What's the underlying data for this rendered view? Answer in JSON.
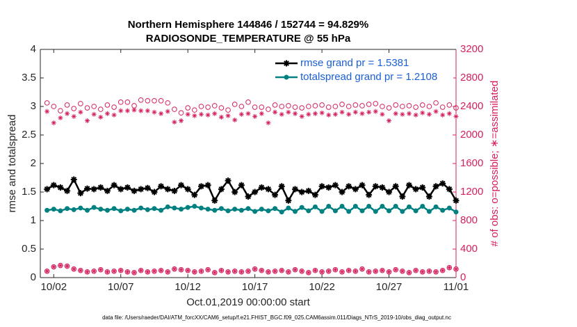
{
  "chart_data": {
    "type": "line",
    "title": [
      "Northern Hemisphere 144846 / 152744 = 94.829%",
      "RADIOSONDE_TEMPERATURE @ 55 hPa"
    ],
    "xlabel": "Oct.01,2019 00:00:00 start",
    "ylabel": "rmse and totalspread",
    "y2label": "# of obs: o=possible; ∗=assimilated",
    "footnote": "data file: /Users/raeder/DAI/ATM_forcXX/CAM6_setup/f.e21.FHIST_BGC.f09_025.CAM6assim.011/Diags_NTrS_2019-10/obs_diag_output.nc",
    "xlim": [
      1,
      32
    ],
    "xticks": [
      {
        "value": 2,
        "label": "10/02"
      },
      {
        "value": 7,
        "label": "10/07"
      },
      {
        "value": 12,
        "label": "10/12"
      },
      {
        "value": 17,
        "label": "10/17"
      },
      {
        "value": 22,
        "label": "10/22"
      },
      {
        "value": 27,
        "label": "10/27"
      },
      {
        "value": 32,
        "label": "11/01"
      }
    ],
    "ylim": [
      0,
      4
    ],
    "yticks": [
      0,
      0.5,
      1,
      1.5,
      2,
      2.5,
      3,
      3.5,
      4
    ],
    "y2lim": [
      0,
      3200
    ],
    "y2ticks": [
      0,
      400,
      800,
      1200,
      1600,
      2000,
      2400,
      2800,
      3200
    ],
    "y2color": "#d6205c",
    "legend": "upper right",
    "x": [
      1.5,
      2,
      2.5,
      3,
      3.5,
      4,
      4.5,
      5,
      5.5,
      6,
      6.5,
      7,
      7.5,
      8,
      8.5,
      9,
      9.5,
      10,
      10.5,
      11,
      11.5,
      12,
      12.5,
      13,
      13.5,
      14,
      14.5,
      15,
      15.5,
      16,
      16.5,
      17,
      17.5,
      18,
      18.5,
      19,
      19.5,
      20,
      20.5,
      21,
      21.5,
      22,
      22.5,
      23,
      23.5,
      24,
      24.5,
      25,
      25.5,
      26,
      26.5,
      27,
      27.5,
      28,
      28.5,
      29,
      29.5,
      30,
      30.5,
      31,
      31.5,
      32
    ],
    "series": [
      {
        "name": "rmse grand pr = 1.5381",
        "color": "#000000",
        "axis": "y",
        "marker": "*",
        "line": true,
        "values": [
          1.55,
          1.62,
          1.58,
          1.52,
          1.72,
          1.48,
          1.56,
          1.55,
          1.58,
          1.52,
          1.62,
          1.55,
          1.58,
          1.52,
          1.55,
          1.57,
          1.5,
          1.6,
          1.55,
          1.52,
          1.62,
          1.55,
          1.45,
          1.6,
          1.62,
          1.35,
          1.55,
          1.7,
          1.5,
          1.62,
          1.42,
          1.5,
          1.58,
          1.55,
          1.45,
          1.6,
          1.35,
          1.55,
          1.5,
          1.52,
          1.45,
          1.6,
          1.58,
          1.62,
          1.5,
          1.6,
          1.55,
          1.62,
          1.45,
          1.6,
          1.58,
          1.5,
          1.6,
          1.42,
          1.62,
          1.55,
          1.58,
          1.42,
          1.6,
          1.65,
          1.55,
          1.35
        ]
      },
      {
        "name": "totalspread grand pr = 1.2108",
        "color": "#008080",
        "axis": "y",
        "marker": "o",
        "filled": true,
        "line": true,
        "values": [
          1.18,
          1.2,
          1.17,
          1.21,
          1.19,
          1.22,
          1.18,
          1.23,
          1.2,
          1.18,
          1.21,
          1.17,
          1.2,
          1.18,
          1.22,
          1.19,
          1.21,
          1.18,
          1.24,
          1.22,
          1.2,
          1.23,
          1.25,
          1.22,
          1.2,
          1.18,
          1.21,
          1.17,
          1.2,
          1.18,
          1.21,
          1.16,
          1.2,
          1.17,
          1.21,
          1.15,
          1.22,
          1.16,
          1.23,
          1.17,
          1.24,
          1.16,
          1.25,
          1.17,
          1.25,
          1.16,
          1.25,
          1.17,
          1.25,
          1.16,
          1.25,
          1.17,
          1.25,
          1.16,
          1.24,
          1.17,
          1.25,
          1.16,
          1.24,
          1.18,
          1.22,
          1.15
        ]
      },
      {
        "color": "#d6205c",
        "axis": "y2",
        "marker": "o",
        "line": false,
        "values": [
          2450,
          2400,
          2340,
          2420,
          2370,
          2440,
          2380,
          2400,
          2360,
          2420,
          2390,
          2460,
          2460,
          2410,
          2490,
          2480,
          2480,
          2480,
          2450,
          2360,
          2310,
          2380,
          2350,
          2400,
          2390,
          2410,
          2380,
          2350,
          2430,
          2400,
          2460,
          2390,
          2390,
          2360,
          2420,
          2400,
          2410,
          2390,
          2380,
          2400,
          2410,
          2420,
          2390,
          2400,
          2430,
          2400,
          2420,
          2410,
          2430,
          2440,
          2400,
          2380,
          2420,
          2400,
          2410,
          2390,
          2420,
          2400,
          2450,
          2390,
          2420,
          2380
        ]
      },
      {
        "color": "#d6205c",
        "axis": "y2",
        "marker": "*",
        "line": false,
        "values": [
          2330,
          2170,
          2240,
          2300,
          2260,
          2320,
          2200,
          2290,
          2250,
          2300,
          2280,
          2340,
          2340,
          2350,
          2340,
          2340,
          2320,
          2300,
          2330,
          2180,
          2200,
          2290,
          2270,
          2290,
          2280,
          2300,
          2250,
          2270,
          2210,
          2290,
          2300,
          2260,
          2300,
          2170,
          2320,
          2290,
          2320,
          2300,
          2260,
          2290,
          2300,
          2310,
          2280,
          2290,
          2320,
          2290,
          2320,
          2300,
          2320,
          2330,
          2290,
          2200,
          2300,
          2290,
          2300,
          2280,
          2310,
          2290,
          2330,
          2280,
          2300,
          2260
        ]
      },
      {
        "color": "#d6205c",
        "axis": "y2",
        "marker": "o",
        "line": false,
        "values": [
          90,
          150,
          170,
          160,
          120,
          100,
          80,
          90,
          110,
          80,
          90,
          100,
          80,
          70,
          100,
          80,
          90,
          100,
          80,
          120,
          110,
          100,
          80,
          90,
          110,
          70,
          100,
          80,
          90,
          80,
          90,
          120,
          100,
          80,
          90,
          100,
          80,
          110,
          90,
          70,
          100,
          80,
          90,
          110,
          80,
          100,
          90,
          120,
          80,
          90,
          100,
          80,
          110,
          90,
          70,
          100,
          80,
          90,
          80,
          100,
          140,
          120
        ]
      },
      {
        "color": "#d6205c",
        "axis": "y2",
        "marker": "*",
        "line": false,
        "values": [
          90,
          150,
          170,
          160,
          120,
          100,
          80,
          90,
          110,
          80,
          90,
          100,
          80,
          70,
          100,
          80,
          90,
          100,
          80,
          120,
          110,
          100,
          80,
          90,
          110,
          70,
          100,
          80,
          90,
          80,
          90,
          120,
          100,
          80,
          90,
          100,
          80,
          110,
          90,
          70,
          100,
          80,
          90,
          110,
          80,
          100,
          90,
          120,
          80,
          90,
          100,
          80,
          110,
          90,
          70,
          100,
          80,
          90,
          80,
          100,
          140,
          120
        ]
      }
    ]
  }
}
